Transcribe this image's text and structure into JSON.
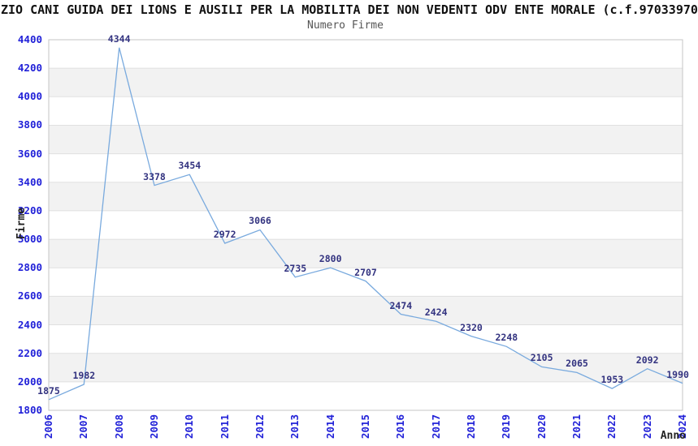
{
  "header": {
    "title_visible": "ZIO CANI GUIDA DEI LIONS E AUSILI PER LA MOBILITA DEI NON VEDENTI ODV ENTE MORALE (c.f.97033970",
    "subtitle": "Numero Firme"
  },
  "chart_data": {
    "type": "line",
    "title": "ZIO CANI GUIDA DEI LIONS E AUSILI PER LA MOBILITA DEI NON VEDENTI ODV ENTE MORALE (c.f.97033970",
    "subtitle": "Numero Firme",
    "xlabel": "Anno",
    "ylabel": "Firme",
    "categories": [
      "2006",
      "2007",
      "2008",
      "2009",
      "2010",
      "2011",
      "2012",
      "2013",
      "2014",
      "2015",
      "2016",
      "2017",
      "2018",
      "2019",
      "2020",
      "2021",
      "2022",
      "2023",
      "2024"
    ],
    "values": [
      1875,
      1982,
      4344,
      3378,
      3454,
      2972,
      3066,
      2735,
      2800,
      2707,
      2474,
      2424,
      2320,
      2248,
      2105,
      2065,
      1953,
      2092,
      1990
    ],
    "ylim": [
      1800,
      4400
    ],
    "ytick_step": 200,
    "yticks": [
      1800,
      2000,
      2200,
      2400,
      2600,
      2800,
      3000,
      3200,
      3400,
      3600,
      3800,
      4000,
      4200,
      4400
    ],
    "grid": "horizontal gridlines with alternating shaded bands",
    "legend": "none",
    "data_labels_shown": true,
    "colors": {
      "line": "#79aade",
      "tick_labels": "#2121d8",
      "data_labels": "#333380",
      "band_shade": "#f2f2f2",
      "gridline": "#e0e0e0",
      "plot_border": "#c5c5c5",
      "title": "#111111",
      "subtitle": "#555555",
      "axis_titles": "#222222",
      "background": "#ffffff"
    }
  }
}
